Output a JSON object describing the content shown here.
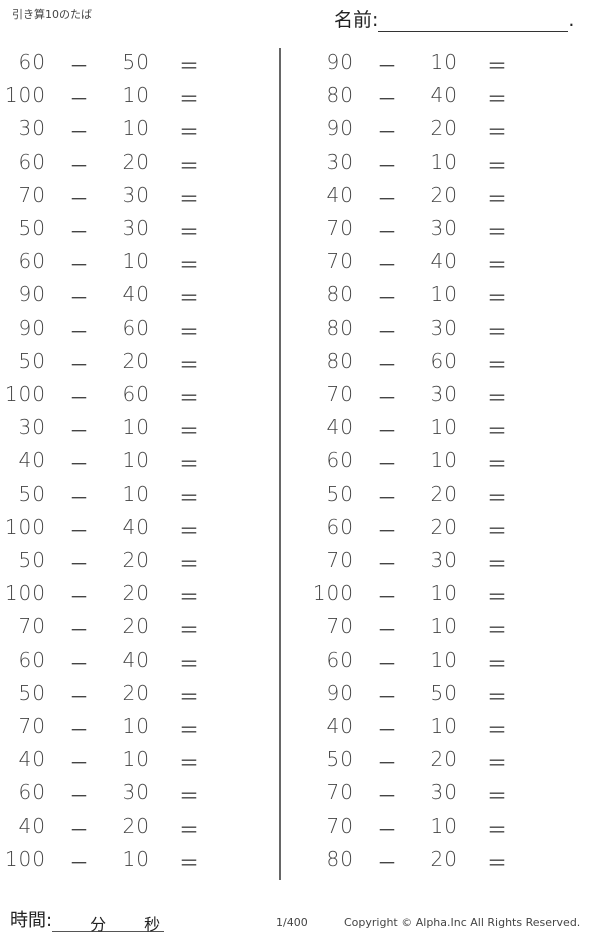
{
  "header": {
    "title": "引き算10のたば",
    "name_label": "名前:",
    "name_end": "."
  },
  "operator": "－",
  "equals": "＝",
  "left_problems": [
    [
      "60",
      "50"
    ],
    [
      "100",
      "10"
    ],
    [
      "30",
      "10"
    ],
    [
      "60",
      "20"
    ],
    [
      "70",
      "30"
    ],
    [
      "50",
      "30"
    ],
    [
      "60",
      "10"
    ],
    [
      "90",
      "40"
    ],
    [
      "90",
      "60"
    ],
    [
      "50",
      "20"
    ],
    [
      "100",
      "60"
    ],
    [
      "30",
      "10"
    ],
    [
      "40",
      "10"
    ],
    [
      "50",
      "10"
    ],
    [
      "100",
      "40"
    ],
    [
      "50",
      "20"
    ],
    [
      "100",
      "20"
    ],
    [
      "70",
      "20"
    ],
    [
      "60",
      "40"
    ],
    [
      "50",
      "20"
    ],
    [
      "70",
      "10"
    ],
    [
      "40",
      "10"
    ],
    [
      "60",
      "30"
    ],
    [
      "40",
      "20"
    ],
    [
      "100",
      "10"
    ]
  ],
  "right_problems": [
    [
      "90",
      "10"
    ],
    [
      "80",
      "40"
    ],
    [
      "90",
      "20"
    ],
    [
      "30",
      "10"
    ],
    [
      "40",
      "20"
    ],
    [
      "70",
      "30"
    ],
    [
      "70",
      "40"
    ],
    [
      "80",
      "10"
    ],
    [
      "80",
      "30"
    ],
    [
      "80",
      "60"
    ],
    [
      "70",
      "30"
    ],
    [
      "40",
      "10"
    ],
    [
      "60",
      "10"
    ],
    [
      "50",
      "20"
    ],
    [
      "60",
      "20"
    ],
    [
      "70",
      "30"
    ],
    [
      "100",
      "10"
    ],
    [
      "70",
      "10"
    ],
    [
      "60",
      "10"
    ],
    [
      "90",
      "50"
    ],
    [
      "40",
      "10"
    ],
    [
      "50",
      "20"
    ],
    [
      "70",
      "30"
    ],
    [
      "70",
      "10"
    ],
    [
      "80",
      "20"
    ]
  ],
  "footer": {
    "time_label": "時間:",
    "minutes": "分",
    "seconds": "秒",
    "page": "1/400",
    "copyright": "Copyright ©  Alpha.Inc All Rights Reserved."
  }
}
